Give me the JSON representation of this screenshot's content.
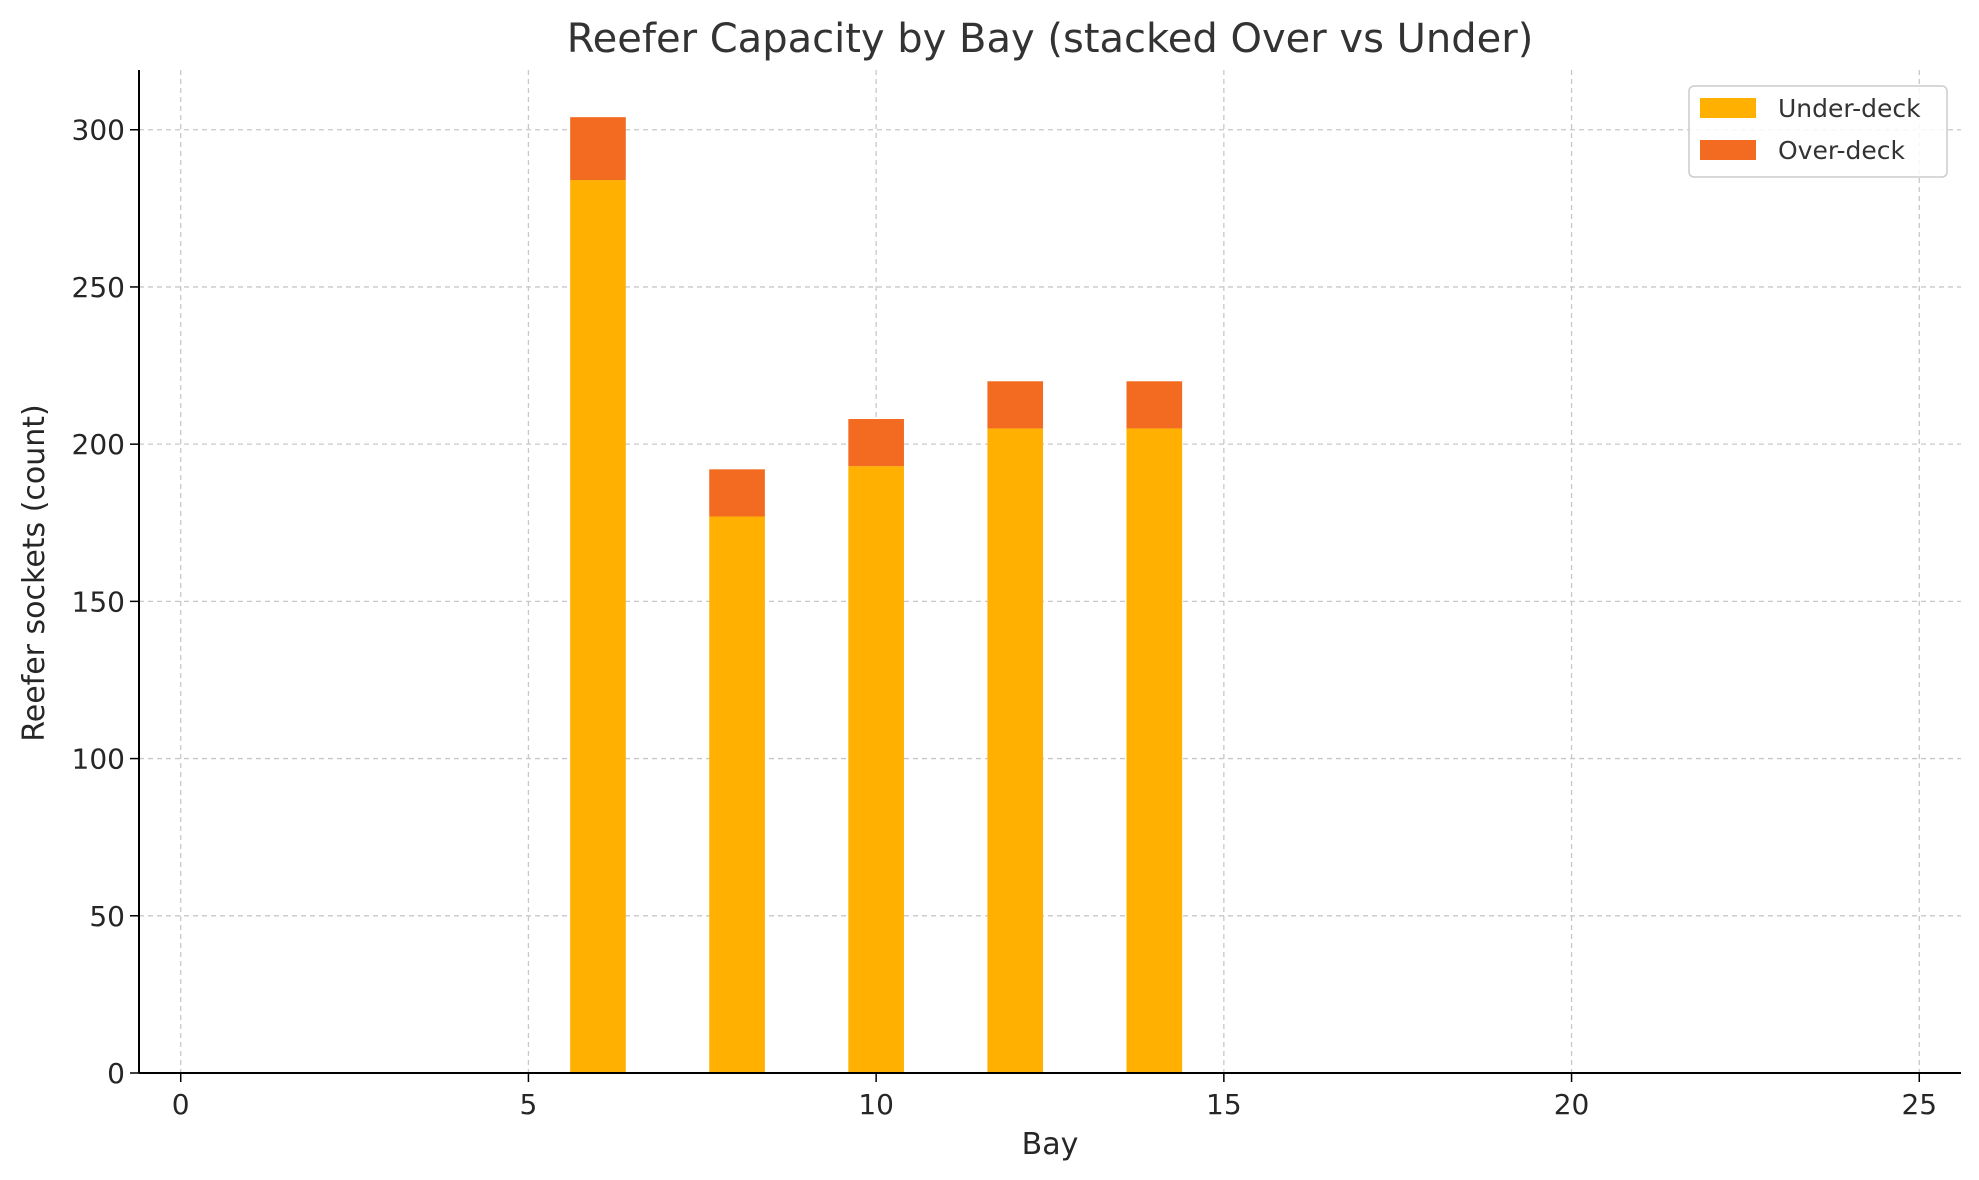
{
  "chart_data": {
    "type": "bar",
    "stacked": true,
    "title": "Reefer Capacity by Bay (stacked Over vs Under)",
    "xlabel": "Bay",
    "ylabel": "Reefer sockets (count)",
    "x": [
      6,
      8,
      10,
      12,
      14
    ],
    "series": [
      {
        "name": "Under-deck",
        "values": [
          284,
          177,
          193,
          205,
          205
        ],
        "color": "#FFB000"
      },
      {
        "name": "Over-deck",
        "values": [
          20,
          15,
          15,
          15,
          15
        ],
        "color": "#F26B21"
      }
    ],
    "bar_width": 0.8,
    "xlim": [
      -0.6,
      25.6
    ],
    "ylim": [
      0,
      319
    ],
    "xticks": [
      0,
      5,
      10,
      15,
      20,
      25
    ],
    "yticks": [
      0,
      50,
      100,
      150,
      200,
      250,
      300
    ],
    "grid": true,
    "legend_position": "top-right"
  }
}
